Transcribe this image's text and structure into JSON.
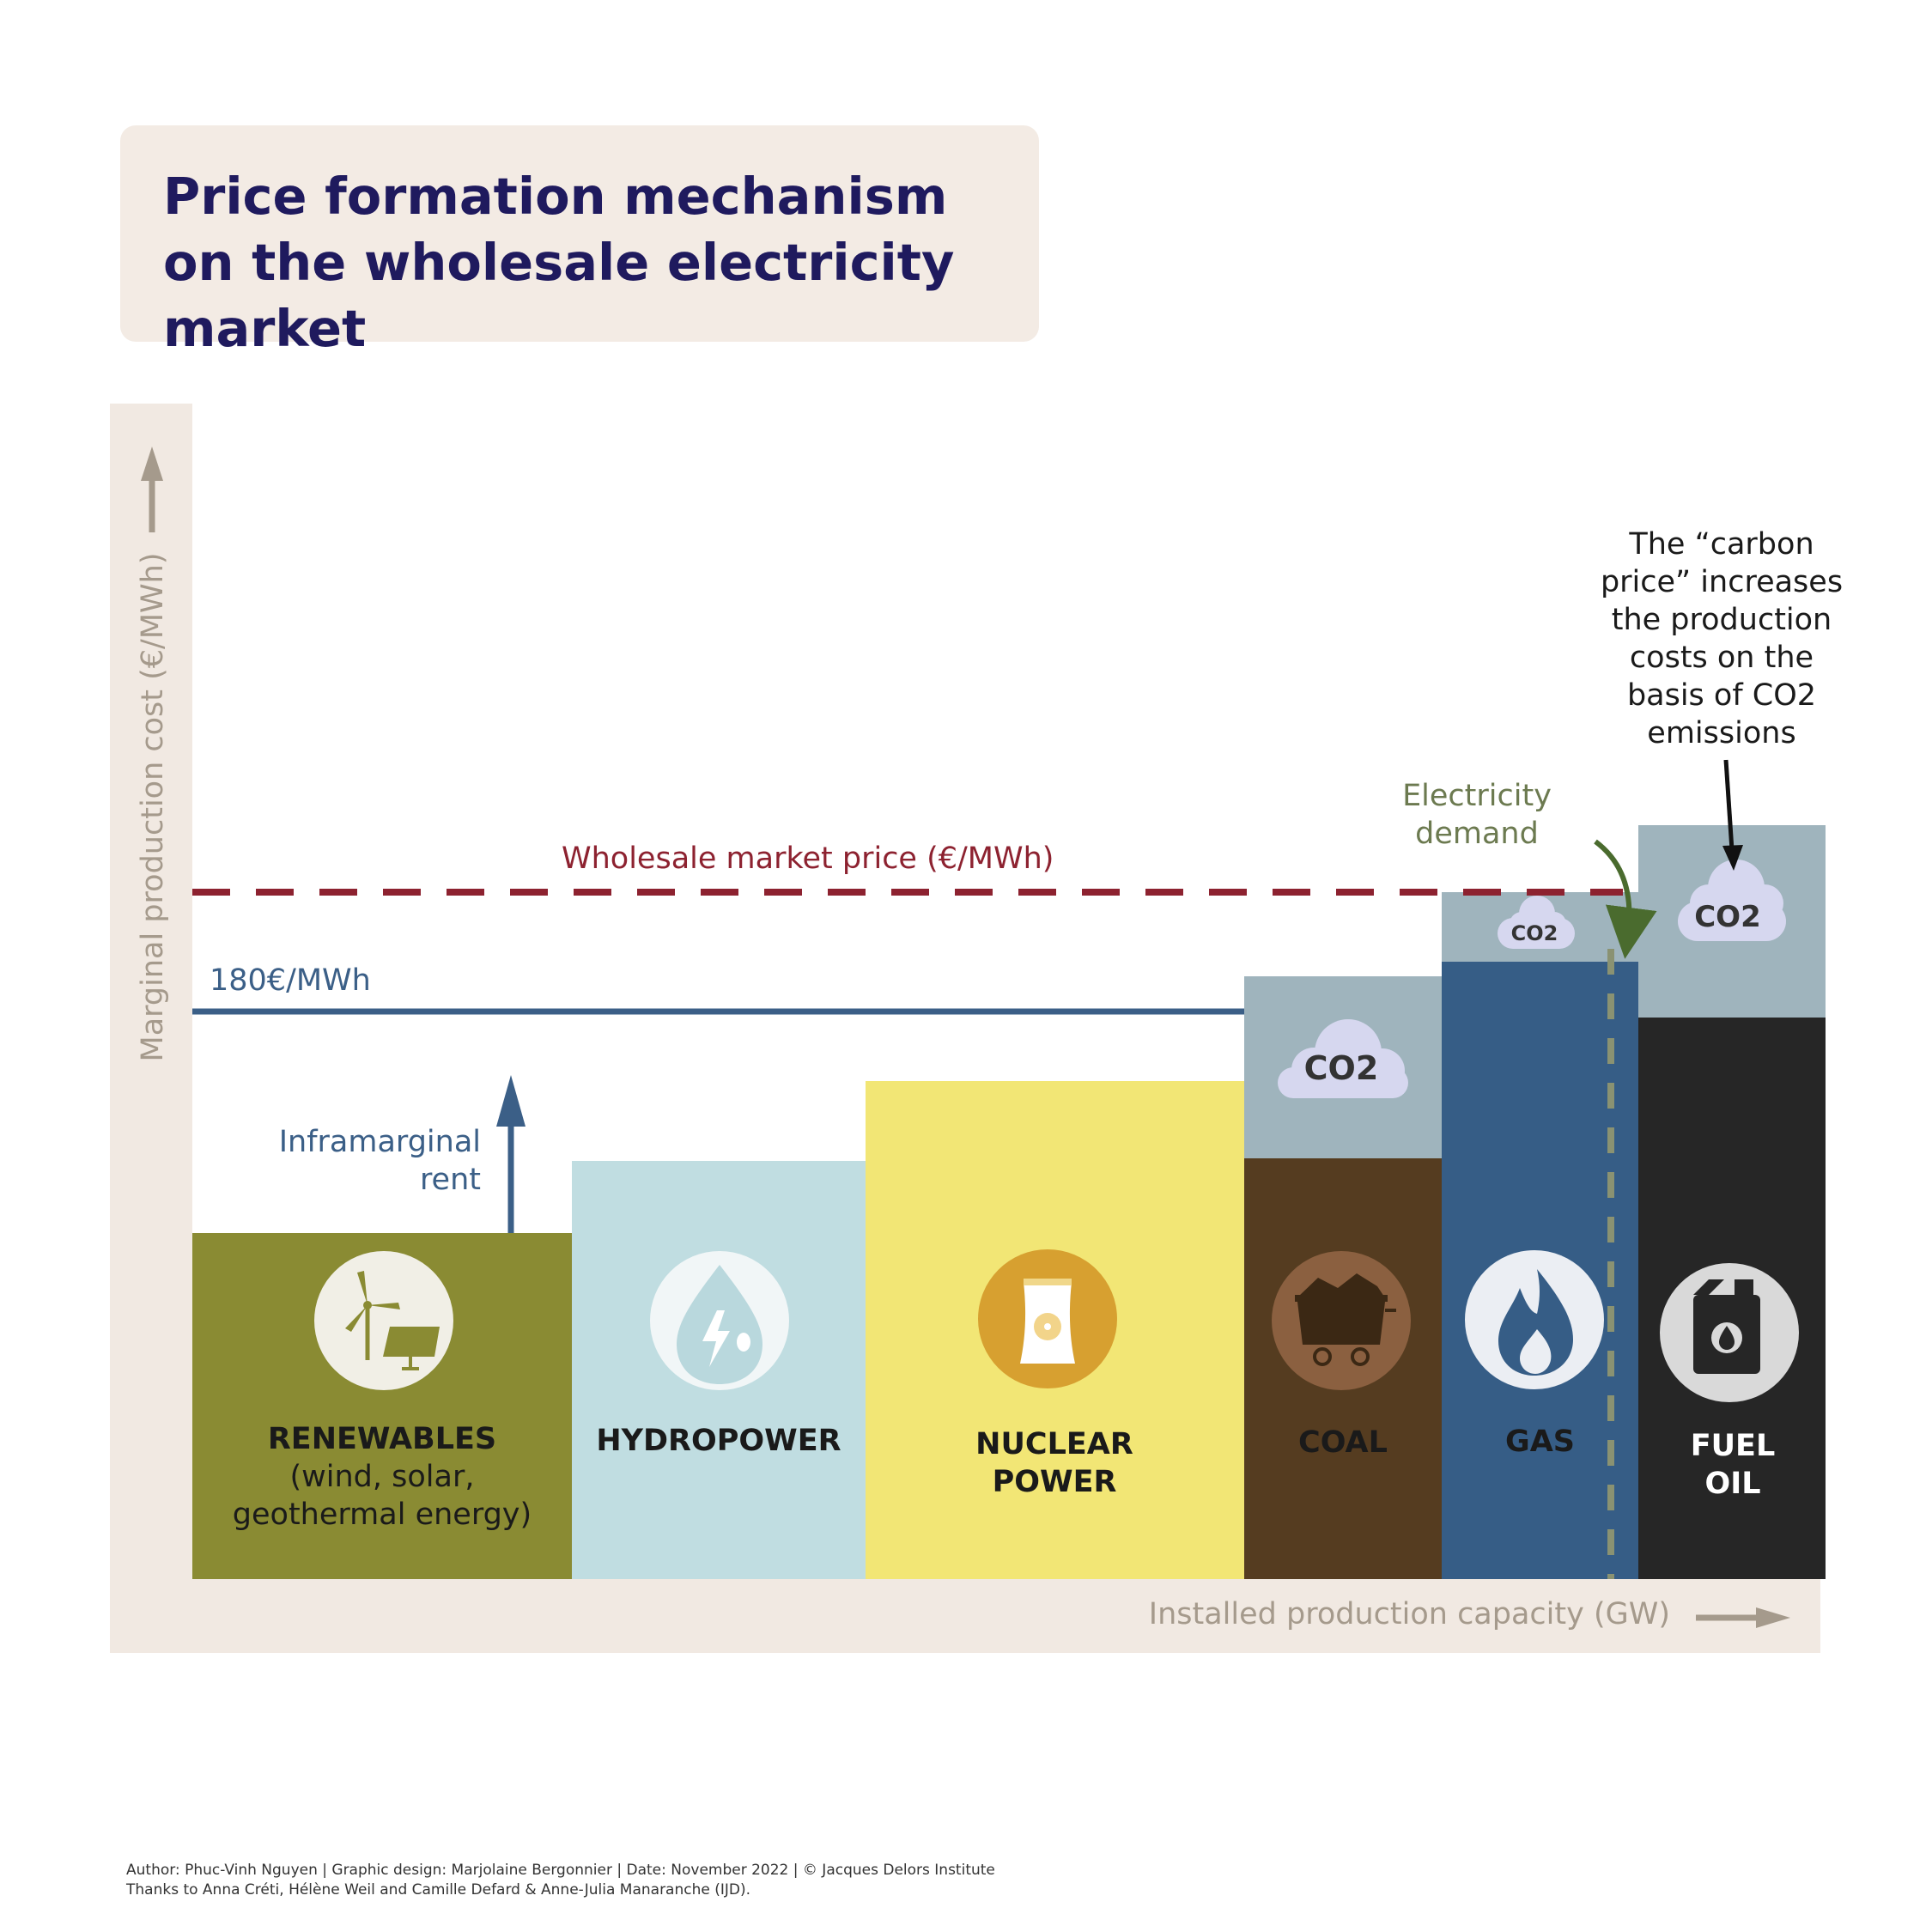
{
  "title": "Price formation mechanism on the wholesale electricity market",
  "axes": {
    "y_label": "Marginal production cost (€/MWh)",
    "x_label": "Installed production capacity (GW)"
  },
  "technologies": [
    {
      "name": "RENEWABLES",
      "detail": "(wind, solar, geothermal energy)",
      "icon": "wind-solar-icon",
      "color": "#8a8b33"
    },
    {
      "name": "HYDROPOWER",
      "detail": "",
      "icon": "water-drop-icon",
      "color": "#c0dde1"
    },
    {
      "name": "NUCLEAR POWER",
      "detail": "",
      "icon": "nuclear-plant-icon",
      "color": "#f2e675"
    },
    {
      "name": "COAL",
      "detail": "",
      "icon": "coal-cart-icon",
      "color": "#553c20",
      "co2_color": "#9fb4bd"
    },
    {
      "name": "GAS",
      "detail": "",
      "icon": "flame-icon",
      "color": "#365d86",
      "co2_color": "#9fb4bd"
    },
    {
      "name": "FUEL OIL",
      "detail": "",
      "icon": "fuel-can-icon",
      "color": "#262626",
      "co2_color": "#9fb4bd"
    }
  ],
  "co2_label": "CO2",
  "annotations": {
    "market_price": "Wholesale market price (€/MWh)",
    "cap_line": "180€/MWh",
    "inframarginal_rent": "Inframarginal rent",
    "electricity_demand": "Electricity demand",
    "carbon_price": "The “carbon price” increases the production costs on the basis of CO2 emissions"
  },
  "colors": {
    "market_price_line": "#8d2230",
    "cap_line": "#3b5f87",
    "demand_line": "#8a9272",
    "demand_text": "#6c7a50",
    "frame": "#f1e9e2",
    "title": "#1f1a5e"
  },
  "footer": {
    "credits": "Author: Phuc-Vinh Nguyen  |  Graphic design: Marjolaine Bergonnier  |  Date: November 2022  |  © Jacques Delors Institute",
    "thanks": "Thanks to Anna Créti, Hélène Weil and Camille Defard & Anne-Julia Manaranche (IJD)."
  }
}
